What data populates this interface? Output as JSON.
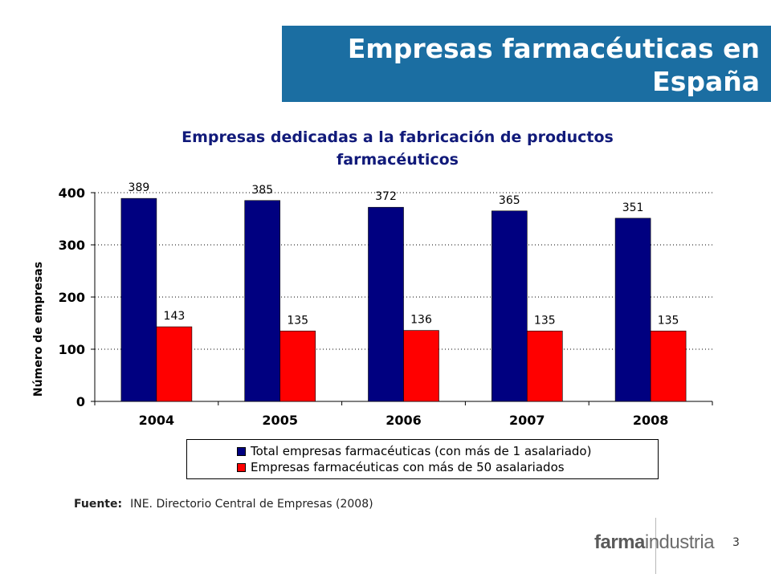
{
  "slide": {
    "title_line1": "Empresas farmacéuticas en",
    "title_line2": "España",
    "page_number": "3",
    "source_label": "Fuente:",
    "source_text": "INE. Directorio Central de Empresas (2008)",
    "logo_bold": "farma",
    "logo_light": "industria"
  },
  "colors": {
    "title_band": "#1b6ea2",
    "series_total": "#000080",
    "series_large": "#ff0000",
    "chart_title": "#111a7a"
  },
  "chart_data": {
    "type": "bar",
    "title_line1": "Empresas dedicadas a la fabricación de productos",
    "title_line2": "farmacéuticos",
    "xlabel": "",
    "ylabel": "Número de empresas",
    "ylim": [
      0,
      400
    ],
    "yticks": [
      0,
      100,
      200,
      300,
      400
    ],
    "grid": true,
    "legend_position": "bottom",
    "categories": [
      "2004",
      "2005",
      "2006",
      "2007",
      "2008"
    ],
    "series": [
      {
        "name": "Total empresas farmacéuticas (con más de 1 asalariado)",
        "values": [
          389,
          385,
          372,
          365,
          351
        ]
      },
      {
        "name": "Empresas farmacéuticas con más de 50 asalariados",
        "values": [
          143,
          135,
          136,
          135,
          135
        ]
      }
    ]
  }
}
